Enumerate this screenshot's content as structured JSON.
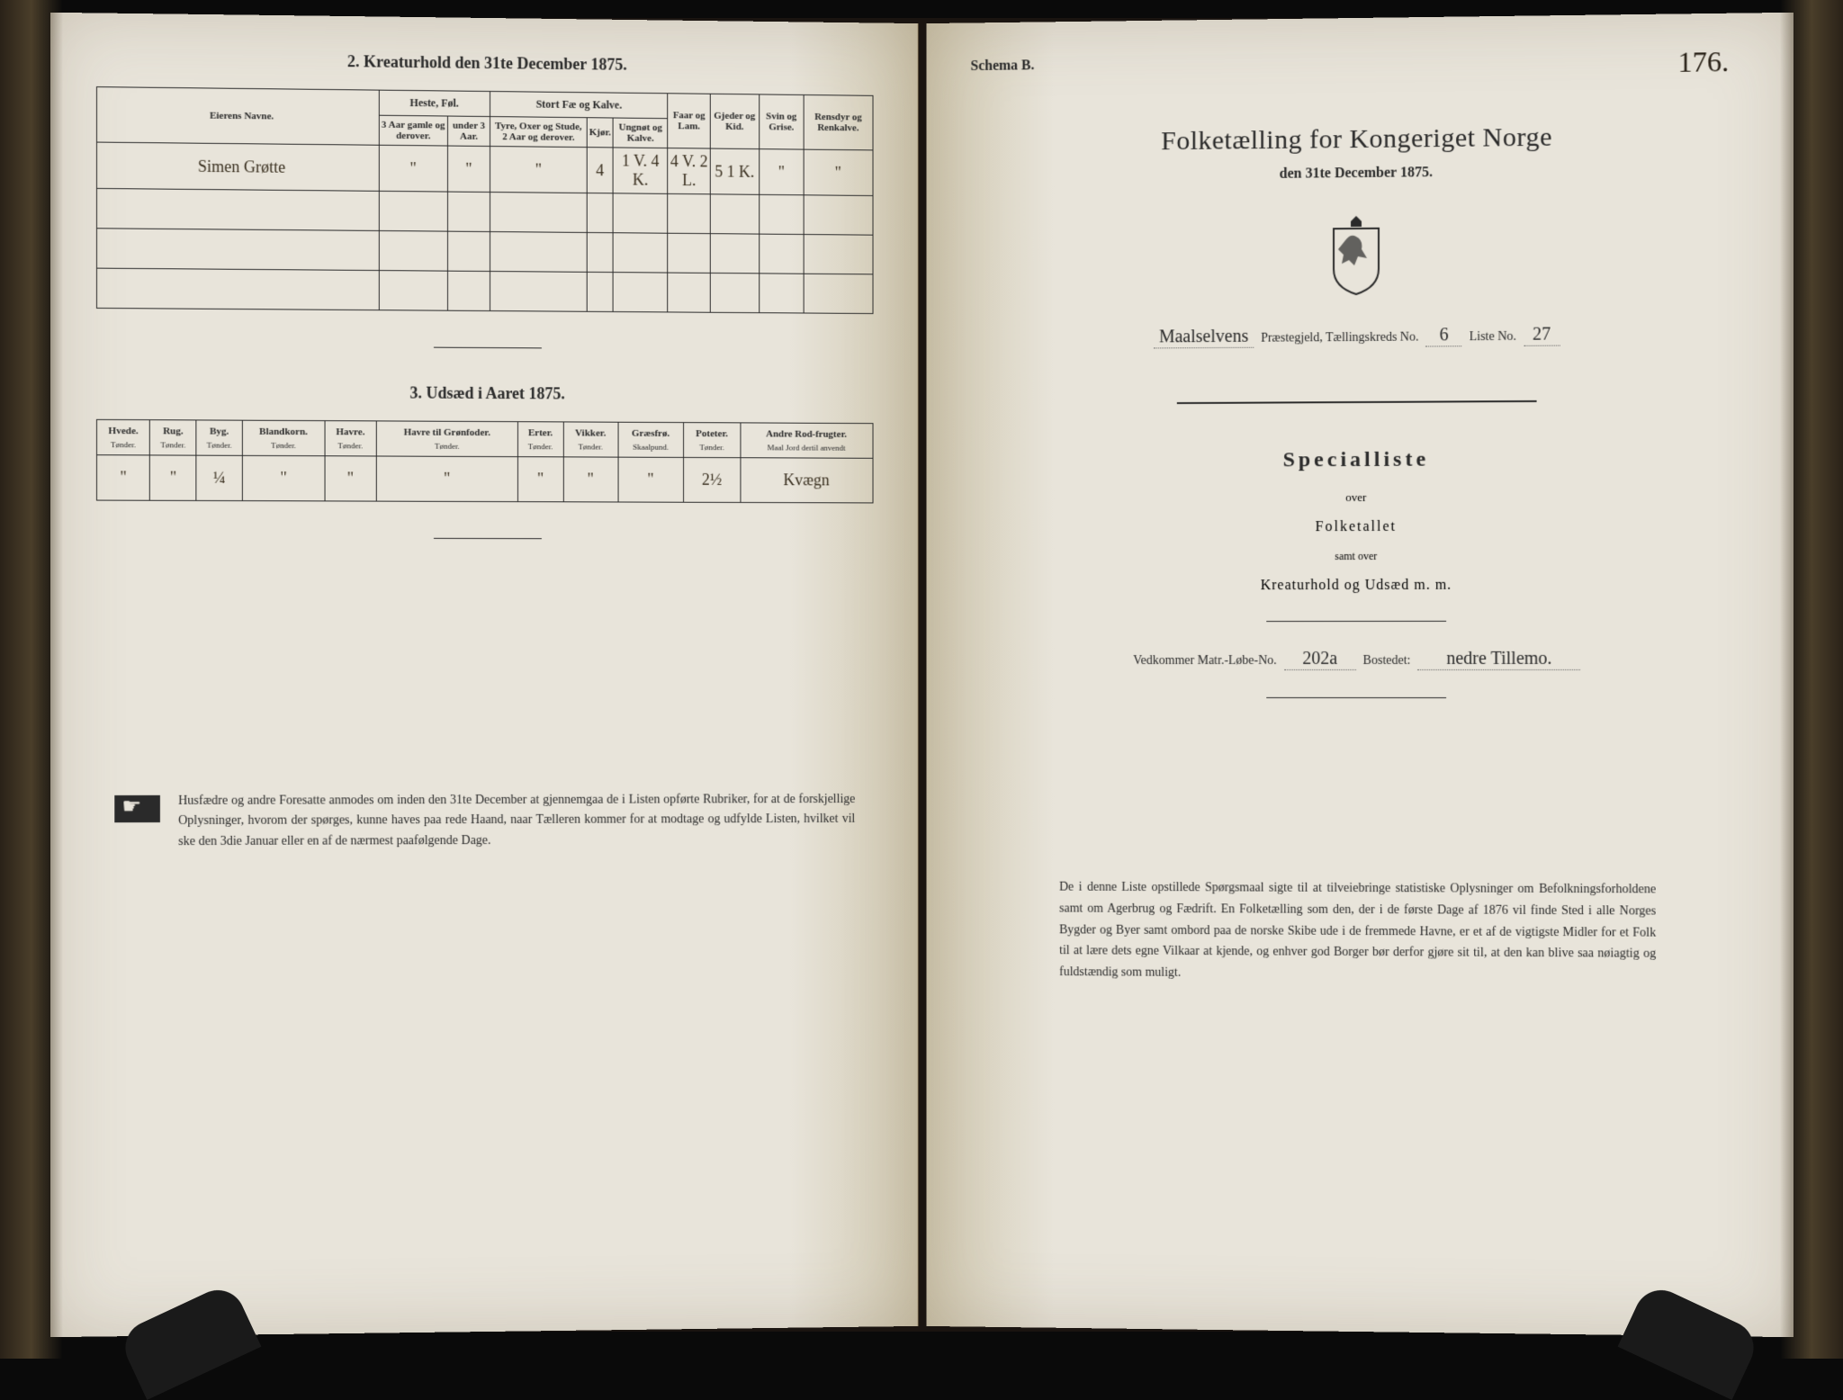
{
  "left": {
    "section2_title": "2. Kreaturhold den 31te December 1875.",
    "table2": {
      "owner_header": "Eierens Navne.",
      "groups": {
        "heste": "Heste, Føl.",
        "stortfae": "Stort Fæ og Kalve.",
        "faar": "Faar og Lam.",
        "gjeder": "Gjeder og Kid.",
        "svin": "Svin og Grise.",
        "rensdyr": "Rensdyr og Renkalve."
      },
      "sub": {
        "heste_a": "3 Aar gamle og derover.",
        "heste_b": "under 3 Aar.",
        "fae_a": "Tyre, Oxer og Stude, 2 Aar og derover.",
        "fae_b": "Kjør.",
        "fae_c": "Ungnøt og Kalve."
      },
      "row": {
        "owner": "Simen Grøtte",
        "heste_a": "\"",
        "heste_b": "\"",
        "fae_a": "\"",
        "fae_b": "4",
        "fae_c": "1 V. 4 K.",
        "faar": "4 V. 2 L.",
        "gjeder": "5 1 K.",
        "svin": "\"",
        "rensdyr": "\""
      }
    },
    "section3_title": "3. Udsæd i Aaret 1875.",
    "table3": {
      "headers": [
        "Hvede.",
        "Rug.",
        "Byg.",
        "Blandkorn.",
        "Havre.",
        "Havre til Grønfoder.",
        "Erter.",
        "Vikker.",
        "Græsfrø.",
        "Poteter.",
        "Andre Rod-frugter."
      ],
      "units": [
        "Tønder.",
        "Tønder.",
        "Tønder.",
        "Tønder.",
        "Tønder.",
        "Tønder.",
        "Tønder.",
        "Tønder.",
        "Skaalpund.",
        "Tønder.",
        "Maal Jord dertil anvendt"
      ],
      "row": [
        "\"",
        "\"",
        "¼",
        "\"",
        "\"",
        "\"",
        "\"",
        "\"",
        "\"",
        "2½",
        "Kvægn"
      ]
    },
    "footnote": "Husfædre og andre Foresatte anmodes om inden den 31te December at gjennemgaa de i Listen opførte Rubriker, for at de forskjellige Oplysninger, hvorom der spørges, kunne haves paa rede Haand, naar Tælleren kommer for at modtage og udfylde Listen, hvilket vil ske den 3die Januar eller en af de nærmest paafølgende Dage."
  },
  "right": {
    "schema": "Schema B.",
    "page_no": "176.",
    "title": "Folketælling for Kongeriget Norge",
    "date": "den 31te December 1875.",
    "parish_prefix": "Maalselvens",
    "parish_label": "Præstegjeld, Tællingskreds No.",
    "kreds_no": "6",
    "liste_label": "Liste No.",
    "liste_no": "27",
    "specialliste": "Specialliste",
    "over": "over",
    "folketallet": "Folketallet",
    "samt": "samt over",
    "kreatur": "Kreaturhold og Udsæd m. m.",
    "vedkommer": "Vedkommer Matr.-Løbe-No.",
    "matr_no": "202a",
    "bosted_label": "Bostedet:",
    "bosted": "nedre Tillemo.",
    "bottom": "De i denne Liste opstillede Spørgsmaal sigte til at tilveiebringe statistiske Oplysninger om Befolkningsforholdene samt om Agerbrug og Fædrift. En Folketælling som den, der i de første Dage af 1876 vil finde Sted i alle Norges Bygder og Byer samt ombord paa de norske Skibe ude i de fremmede Havne, er et af de vigtigste Midler for et Folk til at lære dets egne Vilkaar at kjende, og enhver god Borger bør derfor gjøre sit til, at den kan blive saa nøiagtig og fuldstændig som muligt."
  }
}
